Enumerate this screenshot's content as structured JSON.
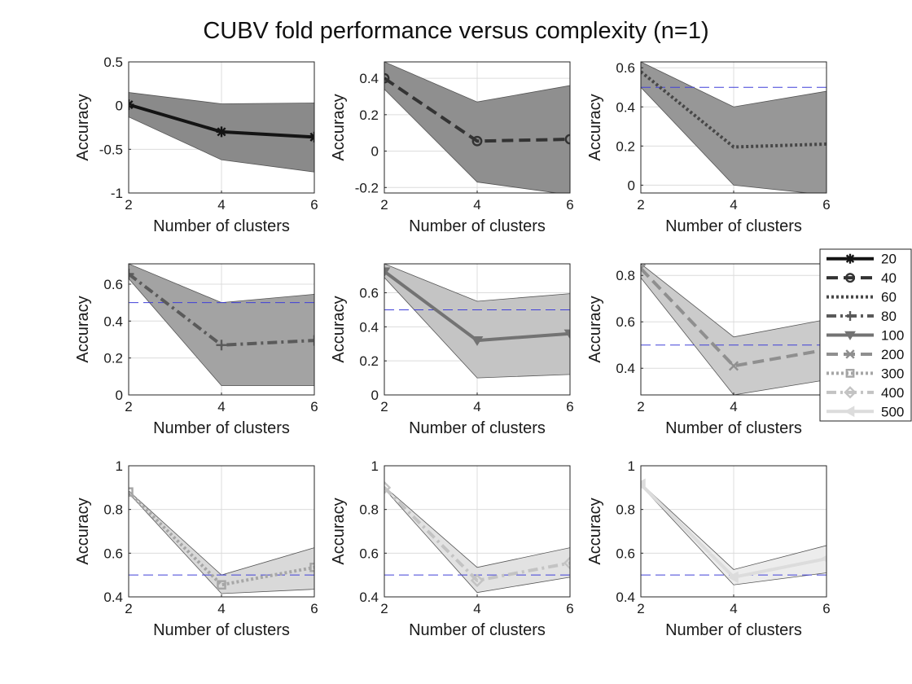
{
  "figure_title": "CUBV fold performance versus complexity (n=1)",
  "colors": {
    "background": "#ffffff",
    "axes_edge": "#262626",
    "grid": "#dcdcdc",
    "chance_line": "#4040d8",
    "band_edge": "#555555"
  },
  "legend": {
    "entries": [
      {
        "label": "20",
        "color": "#141414",
        "dash": "",
        "marker": "star"
      },
      {
        "label": "40",
        "color": "#333333",
        "dash": "14 7",
        "marker": "circle"
      },
      {
        "label": "60",
        "color": "#474747",
        "dash": "3 3",
        "marker": "none"
      },
      {
        "label": "80",
        "color": "#5a5a5a",
        "dash": "12 5 3 5",
        "marker": "plus"
      },
      {
        "label": "100",
        "color": "#737373",
        "dash": "",
        "marker": "tri-down"
      },
      {
        "label": "200",
        "color": "#8f8f8f",
        "dash": "14 7",
        "marker": "x"
      },
      {
        "label": "300",
        "color": "#a6a6a6",
        "dash": "3 3",
        "marker": "square"
      },
      {
        "label": "400",
        "color": "#c3c3c3",
        "dash": "12 5 3 5",
        "marker": "diamond"
      },
      {
        "label": "500",
        "color": "#dcdcdc",
        "dash": "",
        "marker": "tri-left"
      }
    ]
  },
  "chart_data": [
    {
      "type": "line",
      "series_name": "20",
      "xlabel": "Number of clusters",
      "ylabel": "Accuracy",
      "x": [
        2,
        4,
        6
      ],
      "y": [
        0.01,
        -0.3,
        -0.36
      ],
      "band_upper": [
        0.15,
        0.02,
        0.03
      ],
      "band_lower": [
        -0.13,
        -0.62,
        -0.76
      ],
      "band_color": "#8a8a8a",
      "xlim": [
        2,
        6
      ],
      "ylim": [
        -1,
        0.5
      ],
      "xticks": [
        2,
        4,
        6
      ],
      "xtick_labels": [
        "2",
        "4",
        "6"
      ],
      "yticks": [
        -1,
        -0.5,
        0,
        0.5
      ],
      "ytick_labels": [
        "-1",
        "-0.5",
        "0",
        "0.5"
      ],
      "chance_level": null
    },
    {
      "type": "line",
      "series_name": "40",
      "xlabel": "Number of clusters",
      "ylabel": "Accuracy",
      "x": [
        2,
        4,
        6
      ],
      "y": [
        0.4,
        0.055,
        0.065
      ],
      "band_upper": [
        0.49,
        0.27,
        0.36
      ],
      "band_lower": [
        0.34,
        -0.17,
        -0.24
      ],
      "band_color": "#8f8f8f",
      "xlim": [
        2,
        6
      ],
      "ylim": [
        -0.23,
        0.49
      ],
      "xticks": [
        2,
        4,
        6
      ],
      "xtick_labels": [
        "2",
        "4",
        "6"
      ],
      "yticks": [
        -0.2,
        0,
        0.2,
        0.4
      ],
      "ytick_labels": [
        "-0.2",
        "0",
        "0.2",
        "0.4"
      ],
      "chance_level": null
    },
    {
      "type": "line",
      "series_name": "60",
      "xlabel": "Number of clusters",
      "ylabel": "Accuracy",
      "x": [
        2,
        4,
        6
      ],
      "y": [
        0.58,
        0.195,
        0.21
      ],
      "band_upper": [
        0.63,
        0.4,
        0.48
      ],
      "band_lower": [
        0.5,
        0.0,
        -0.05
      ],
      "band_color": "#979797",
      "xlim": [
        2,
        6
      ],
      "ylim": [
        -0.04,
        0.63
      ],
      "xticks": [
        2,
        4,
        6
      ],
      "xtick_labels": [
        "2",
        "4",
        "6"
      ],
      "yticks": [
        0,
        0.2,
        0.4,
        0.6
      ],
      "ytick_labels": [
        "0",
        "0.2",
        "0.4",
        "0.6"
      ],
      "chance_level": 0.5
    },
    {
      "type": "line",
      "series_name": "80",
      "xlabel": "Number of clusters",
      "ylabel": "Accuracy",
      "x": [
        2,
        4,
        6
      ],
      "y": [
        0.655,
        0.27,
        0.295
      ],
      "band_upper": [
        0.71,
        0.5,
        0.545
      ],
      "band_lower": [
        0.63,
        0.05,
        0.05
      ],
      "band_color": "#a3a3a3",
      "xlim": [
        2,
        6
      ],
      "ylim": [
        0,
        0.71
      ],
      "xticks": [
        2,
        4,
        6
      ],
      "xtick_labels": [
        "2",
        "4",
        "6"
      ],
      "yticks": [
        0,
        0.2,
        0.4,
        0.6
      ],
      "ytick_labels": [
        "0",
        "0.2",
        "0.4",
        "0.6"
      ],
      "chance_level": 0.5
    },
    {
      "type": "line",
      "series_name": "100",
      "xlabel": "Number of clusters",
      "ylabel": "Accuracy",
      "x": [
        2,
        4,
        6
      ],
      "y": [
        0.725,
        0.32,
        0.36
      ],
      "band_upper": [
        0.77,
        0.55,
        0.595
      ],
      "band_lower": [
        0.69,
        0.1,
        0.12
      ],
      "band_color": "#c4c4c4",
      "xlim": [
        2,
        6
      ],
      "ylim": [
        0,
        0.77
      ],
      "xticks": [
        2,
        4,
        6
      ],
      "xtick_labels": [
        "2",
        "4",
        "6"
      ],
      "yticks": [
        0,
        0.2,
        0.4,
        0.6
      ],
      "ytick_labels": [
        "0",
        "0.2",
        "0.4",
        "0.6"
      ],
      "chance_level": 0.5
    },
    {
      "type": "line",
      "series_name": "200",
      "xlabel": "Number of clusters",
      "ylabel": "Accuracy",
      "x": [
        2,
        4,
        6
      ],
      "y": [
        0.83,
        0.41,
        0.48
      ],
      "band_upper": [
        0.85,
        0.535,
        0.61
      ],
      "band_lower": [
        0.79,
        0.285,
        0.35
      ],
      "band_color": "#cbcbcb",
      "xlim": [
        2,
        6
      ],
      "ylim": [
        0.285,
        0.85
      ],
      "xticks": [
        2,
        4,
        6
      ],
      "xtick_labels": [
        "2",
        "4",
        "6"
      ],
      "yticks": [
        0.4,
        0.6,
        0.8
      ],
      "ytick_labels": [
        "0.4",
        "0.6",
        "0.8"
      ],
      "chance_level": 0.5
    },
    {
      "type": "line",
      "series_name": "300",
      "xlabel": "Number of clusters",
      "ylabel": "Accuracy",
      "x": [
        2,
        4,
        6
      ],
      "y": [
        0.88,
        0.455,
        0.535
      ],
      "band_upper": [
        0.885,
        0.5,
        0.625
      ],
      "band_lower": [
        0.875,
        0.415,
        0.435
      ],
      "band_color": "#d9d9d9",
      "xlim": [
        2,
        6
      ],
      "ylim": [
        0.4,
        1.0
      ],
      "xticks": [
        2,
        4,
        6
      ],
      "xtick_labels": [
        "2",
        "4",
        "6"
      ],
      "yticks": [
        0.4,
        0.6,
        0.8,
        1.0
      ],
      "ytick_labels": [
        "0.4",
        "0.6",
        "0.8",
        "1"
      ],
      "chance_level": 0.5
    },
    {
      "type": "line",
      "series_name": "400",
      "xlabel": "Number of clusters",
      "ylabel": "Accuracy",
      "x": [
        2,
        4,
        6
      ],
      "y": [
        0.9,
        0.475,
        0.555
      ],
      "band_upper": [
        0.905,
        0.535,
        0.625
      ],
      "band_lower": [
        0.895,
        0.42,
        0.49
      ],
      "band_color": "#e2e2e2",
      "xlim": [
        2,
        6
      ],
      "ylim": [
        0.4,
        1.0
      ],
      "xticks": [
        2,
        4,
        6
      ],
      "xtick_labels": [
        "2",
        "4",
        "6"
      ],
      "yticks": [
        0.4,
        0.6,
        0.8,
        1.0
      ],
      "ytick_labels": [
        "0.4",
        "0.6",
        "0.8",
        "1"
      ],
      "chance_level": 0.5
    },
    {
      "type": "line",
      "series_name": "500",
      "xlabel": "Number of clusters",
      "ylabel": "Accuracy",
      "x": [
        2,
        4,
        6
      ],
      "y": [
        0.915,
        0.49,
        0.575
      ],
      "band_upper": [
        0.92,
        0.525,
        0.635
      ],
      "band_lower": [
        0.91,
        0.455,
        0.51
      ],
      "band_color": "#ececec",
      "xlim": [
        2,
        6
      ],
      "ylim": [
        0.4,
        1.0
      ],
      "xticks": [
        2,
        4,
        6
      ],
      "xtick_labels": [
        "2",
        "4",
        "6"
      ],
      "yticks": [
        0.4,
        0.6,
        0.8,
        1.0
      ],
      "ytick_labels": [
        "0.4",
        "0.6",
        "0.8",
        "1"
      ],
      "chance_level": 0.5
    }
  ]
}
